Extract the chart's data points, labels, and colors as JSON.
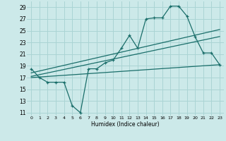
{
  "xlabel": "Humidex (Indice chaleur)",
  "xlim": [
    -0.5,
    23.5
  ],
  "ylim": [
    10.5,
    30
  ],
  "yticks": [
    11,
    13,
    15,
    17,
    19,
    21,
    23,
    25,
    27,
    29
  ],
  "xticks": [
    0,
    1,
    2,
    3,
    4,
    5,
    6,
    7,
    8,
    9,
    10,
    11,
    12,
    13,
    14,
    15,
    16,
    17,
    18,
    19,
    20,
    21,
    22,
    23
  ],
  "bg_color": "#cce9e9",
  "grid_color": "#aad4d4",
  "line_color": "#1a6e6a",
  "series_main": {
    "x": [
      0,
      1,
      2,
      3,
      4,
      5,
      6,
      7,
      8,
      9,
      10,
      11,
      12,
      13,
      14,
      15,
      16,
      17,
      18,
      19,
      20,
      21,
      22,
      23
    ],
    "y": [
      18.5,
      17.0,
      16.2,
      16.2,
      16.2,
      12.2,
      11.0,
      18.5,
      18.5,
      19.5,
      20.0,
      22.0,
      24.2,
      22.0,
      27.0,
      27.2,
      27.2,
      29.2,
      29.2,
      27.5,
      24.0,
      21.2,
      21.2,
      19.2
    ]
  },
  "series_lines": [
    {
      "x": [
        0,
        23
      ],
      "y": [
        17.8,
        25.2
      ]
    },
    {
      "x": [
        0,
        23
      ],
      "y": [
        17.2,
        24.0
      ]
    },
    {
      "x": [
        0,
        23
      ],
      "y": [
        17.0,
        19.2
      ]
    }
  ]
}
